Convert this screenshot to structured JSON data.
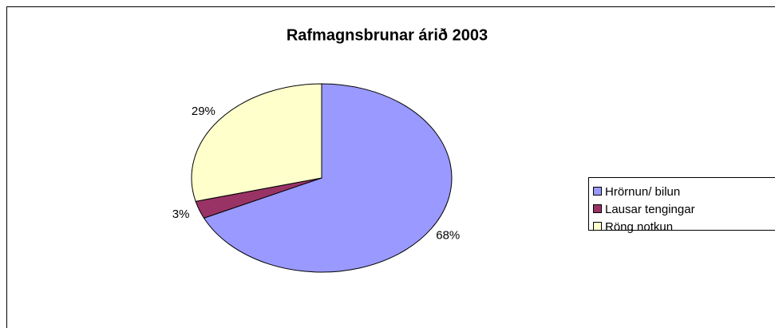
{
  "chart_data": {
    "type": "pie",
    "title": "Rafmagnsbrunar árið 2003",
    "categories": [
      "Hrörnun/ bilun",
      "Lausar tengingar",
      "Röng notkun"
    ],
    "values": [
      68,
      3,
      29
    ],
    "value_labels": [
      "68%",
      "3%",
      "29%"
    ],
    "colors": [
      "#9999ff",
      "#993366",
      "#ffffcc"
    ],
    "legend": "right"
  }
}
